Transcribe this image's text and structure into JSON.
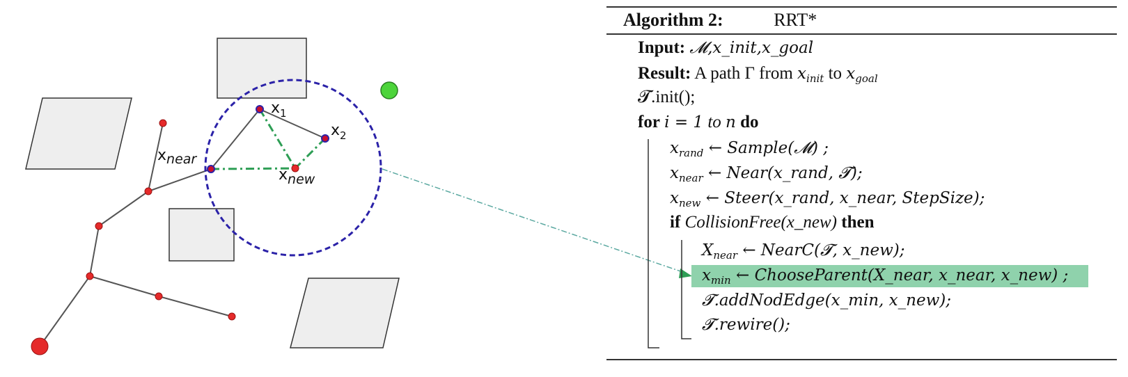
{
  "diagram": {
    "labels": {
      "x1": {
        "base": "x",
        "sub": "1"
      },
      "x2": {
        "base": "x",
        "sub": "2"
      },
      "xnear": {
        "base": "x",
        "sub": "near"
      },
      "xnew": {
        "base": "x",
        "sub": "new"
      }
    },
    "colors": {
      "obstacle_fill": "#eeeeee",
      "obstacle_stroke": "#333333",
      "tree_edge": "#555555",
      "tree_node": "#e52a2a",
      "start_node": "#e52a2a",
      "goal_node": "#4cd43a",
      "near_node": "#c8102e",
      "circle": "#2b22a8",
      "dashdot": "#2e9e55",
      "pointer_line": "#5aa8a0"
    }
  },
  "algorithm": {
    "title_label": "Algorithm 2:",
    "title_name": "RRT*",
    "highlight_color": "#8fd2ac",
    "input": {
      "keyword": "Input:",
      "value": "𝓜,x_init,x_goal"
    },
    "result": {
      "keyword": "Result:",
      "pre": "A path Γ from",
      "start": "x",
      "start_sub": "init",
      "mid": "to",
      "end": "x",
      "end_sub": "goal"
    },
    "init_line": "𝓣.init();",
    "for_line": {
      "kw_for": "for",
      "expr": "i = 1",
      "to": "to",
      "n": "n",
      "kw_do": "do"
    },
    "lines": [
      {
        "lhs": "x",
        "lhs_sub": "rand",
        "rhs": "← Sample(𝓜) ;"
      },
      {
        "lhs": "x",
        "lhs_sub": "near",
        "rhs": "← Near(x_rand, 𝓣);"
      },
      {
        "lhs": "x",
        "lhs_sub": "new",
        "rhs": "← Steer(x_rand, x_near, StepSize);"
      }
    ],
    "if_line": {
      "kw_if": "if",
      "cond": "CollisionFree(x_new)",
      "kw_then": "then"
    },
    "inner_lines": [
      {
        "lhs": "X",
        "lhs_sub": "near",
        "rhs": "← NearC(𝓣, x_new);"
      },
      {
        "lhs": "x",
        "lhs_sub": "min",
        "rhs": "← ChooseParent(X_near, x_near, x_new) ;"
      },
      {
        "lhs": "𝓣",
        "lhs_sub": "",
        "rhs": ".addNodEdge(x_min, x_new);"
      },
      {
        "lhs": "𝓣",
        "lhs_sub": "",
        "rhs": ".rewire();"
      }
    ]
  }
}
